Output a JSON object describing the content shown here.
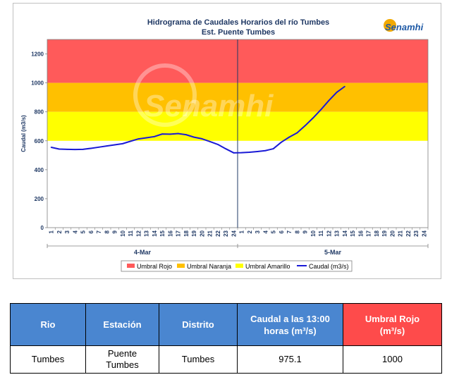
{
  "chart_data": {
    "type": "line",
    "title": "Hidrograma de Caudales Horarios del río Tumbes",
    "subtitle": "Est. Puente Tumbes",
    "ylabel": "Caudal  (m3/s)",
    "ylim": [
      0,
      1300
    ],
    "yticks": [
      "0",
      "200",
      "400",
      "600",
      "800",
      "1000",
      "1200"
    ],
    "hour_labels": [
      "1",
      "2",
      "3",
      "4",
      "5",
      "6",
      "7",
      "8",
      "9",
      "10",
      "11",
      "12",
      "13",
      "14",
      "15",
      "16",
      "17",
      "18",
      "19",
      "20",
      "21",
      "22",
      "23",
      "24"
    ],
    "days": [
      "4-Mar",
      "5-Mar"
    ],
    "thresholds": [
      {
        "name": "Umbral Rojo",
        "from": 1000,
        "to": 1300,
        "color": "#ff5a5a"
      },
      {
        "name": "Umbral Naranja",
        "from": 800,
        "to": 1000,
        "color": "#ffc000"
      },
      {
        "name": "Umbral Amarillo",
        "from": 600,
        "to": 800,
        "color": "#ffff00"
      }
    ],
    "series": [
      {
        "name": "Caudal (m3/s)",
        "color": "#1a1ad6",
        "values": [
          555,
          543,
          541,
          540,
          541,
          548,
          556,
          564,
          572,
          580,
          597,
          613,
          621,
          629,
          647,
          646,
          650,
          642,
          625,
          614,
          595,
          575,
          545,
          517,
          518,
          521,
          526,
          532,
          545,
          590,
          625,
          655,
          704,
          757,
          815,
          878,
          935,
          975
        ]
      }
    ]
  },
  "logo": {
    "name": "Senamhi",
    "watermark": "Senamhi"
  },
  "table": {
    "headers": [
      "Rio",
      "Estación",
      "Distrito",
      "Caudal a las 13:00 horas (m³/s)",
      "Umbral Rojo (m³/s)"
    ],
    "row": [
      "Tumbes",
      "Puente Tumbes",
      "Tumbes",
      "975.1",
      "1000"
    ]
  }
}
